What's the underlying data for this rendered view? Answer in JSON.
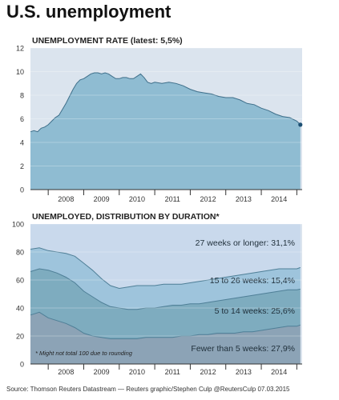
{
  "title": "U.S. unemployment",
  "source": "Source: Thomson Reuters Datastream — Reuters graphic/Stephen Culp @ReutersCulp 07.03.2015",
  "colors": {
    "panel_bg": "#dbe4ee",
    "area_top": "#8fbcd2",
    "area_line": "#3f6f8a",
    "band_27plus": "#c9d9ec",
    "band_15_26": "#9ec4dc",
    "band_5_14": "#7eacbf",
    "band_lt5": "#8ca3b6",
    "dot": "#1d4f73"
  },
  "chart_data": [
    {
      "type": "area",
      "title": "UNEMPLOYMENT RATE (latest: 5,5%)",
      "x_ticks": [
        "2008",
        "2009",
        "2010",
        "2011",
        "2012",
        "2013",
        "2014"
      ],
      "y_ticks": [
        "0",
        "2",
        "4",
        "6",
        "8",
        "10",
        "12"
      ],
      "ylim": [
        0,
        12
      ],
      "xlim": [
        2007.5,
        2015.15
      ],
      "x": [
        2007.5,
        2007.6,
        2007.7,
        2007.8,
        2007.9,
        2008.0,
        2008.1,
        2008.2,
        2008.3,
        2008.4,
        2008.5,
        2008.6,
        2008.7,
        2008.8,
        2008.9,
        2009.0,
        2009.1,
        2009.2,
        2009.3,
        2009.4,
        2009.5,
        2009.6,
        2009.7,
        2009.8,
        2009.9,
        2010.0,
        2010.1,
        2010.2,
        2010.3,
        2010.4,
        2010.5,
        2010.6,
        2010.7,
        2010.8,
        2010.9,
        2011.0,
        2011.2,
        2011.4,
        2011.6,
        2011.8,
        2012.0,
        2012.2,
        2012.4,
        2012.6,
        2012.8,
        2013.0,
        2013.2,
        2013.4,
        2013.6,
        2013.8,
        2014.0,
        2014.2,
        2014.4,
        2014.6,
        2014.8,
        2015.0,
        2015.1
      ],
      "values": [
        4.9,
        5.0,
        4.9,
        5.2,
        5.3,
        5.5,
        5.8,
        6.1,
        6.3,
        6.8,
        7.3,
        7.9,
        8.5,
        9.0,
        9.3,
        9.4,
        9.6,
        9.8,
        9.9,
        9.9,
        9.8,
        9.9,
        9.8,
        9.6,
        9.4,
        9.4,
        9.5,
        9.5,
        9.4,
        9.4,
        9.6,
        9.8,
        9.5,
        9.1,
        9.0,
        9.1,
        9.0,
        9.1,
        9.0,
        8.8,
        8.5,
        8.3,
        8.2,
        8.1,
        7.9,
        7.8,
        7.8,
        7.6,
        7.3,
        7.2,
        6.9,
        6.7,
        6.4,
        6.2,
        6.1,
        5.8,
        5.5
      ],
      "latest_label": "5,5%"
    },
    {
      "type": "area",
      "stacked": true,
      "title": "UNEMPLOYED, DISTRIBUTION BY DURATION*",
      "x_ticks": [
        "2008",
        "2009",
        "2010",
        "2011",
        "2012",
        "2013",
        "2014"
      ],
      "y_ticks": [
        "0",
        "20",
        "40",
        "60",
        "80",
        "100"
      ],
      "ylim": [
        0,
        100
      ],
      "xlim": [
        2007.5,
        2015.15
      ],
      "x": [
        2007.5,
        2007.75,
        2008.0,
        2008.25,
        2008.5,
        2008.75,
        2009.0,
        2009.25,
        2009.5,
        2009.75,
        2010.0,
        2010.25,
        2010.5,
        2010.75,
        2011.0,
        2011.25,
        2011.5,
        2011.75,
        2012.0,
        2012.25,
        2012.5,
        2012.75,
        2013.0,
        2013.25,
        2013.5,
        2013.75,
        2014.0,
        2014.25,
        2014.5,
        2014.75,
        2015.0,
        2015.1
      ],
      "series": [
        {
          "name": "Fewer than 5 weeks: 27,9%",
          "cumulative": [
            35,
            37,
            33,
            31,
            29,
            26,
            22,
            20,
            19,
            18,
            18,
            18,
            18,
            19,
            19,
            19,
            19,
            20,
            20,
            21,
            21,
            22,
            22,
            22,
            23,
            23,
            24,
            25,
            26,
            27,
            27,
            27.9
          ]
        },
        {
          "name": "5 to 14 weeks: 25,6%",
          "cumulative": [
            66,
            68,
            67,
            65,
            62,
            58,
            52,
            48,
            44,
            41,
            40,
            39,
            39,
            40,
            40,
            41,
            42,
            42,
            43,
            43,
            44,
            45,
            46,
            47,
            48,
            49,
            50,
            51,
            52,
            53,
            53,
            53.5
          ]
        },
        {
          "name": "15 to 26 weeks: 15,4%",
          "cumulative": [
            82,
            83,
            81,
            80,
            79,
            77,
            72,
            67,
            61,
            56,
            54,
            55,
            56,
            56,
            56,
            57,
            57,
            57,
            58,
            59,
            60,
            61,
            62,
            63,
            64,
            65,
            66,
            67,
            68,
            68,
            68,
            68.9
          ]
        },
        {
          "name": "27 weeks or longer: 31,1%",
          "cumulative": [
            100,
            100,
            100,
            100,
            100,
            100,
            100,
            100,
            100,
            100,
            100,
            100,
            100,
            100,
            100,
            100,
            100,
            100,
            100,
            100,
            100,
            100,
            100,
            100,
            100,
            100,
            100,
            100,
            100,
            100,
            100,
            100
          ]
        }
      ],
      "footnote": "* Might not total 100 due to rounding"
    }
  ]
}
